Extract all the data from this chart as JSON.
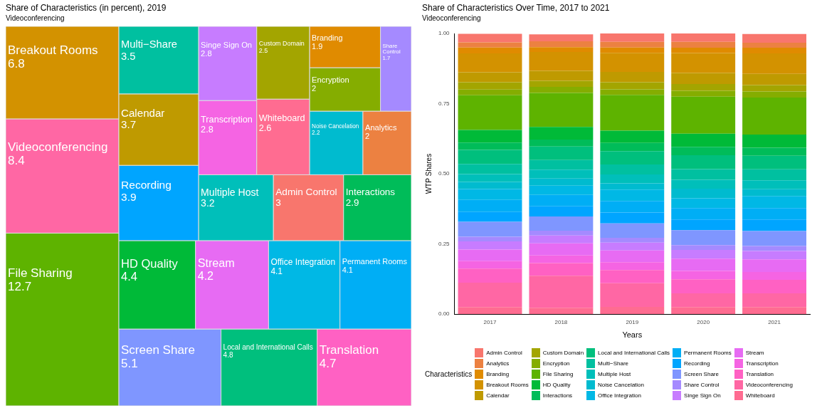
{
  "chart_data": [
    {
      "type": "other",
      "title": "Share of Characteristics (in percent), 2019",
      "subtitle": "Videoconferencing",
      "data_labels": true,
      "categories": [
        "File Sharing",
        "Videoconferencing",
        "Breakout Rooms",
        "Screen Share",
        "Local and International Calls",
        "Translation",
        "HD Quality",
        "Stream",
        "Office Integration",
        "Permanent Rooms",
        "Recording",
        "Calendar",
        "Multi−Share",
        "Multiple Host",
        "Admin Control",
        "Interactions",
        "Transcription",
        "Singe Sign On",
        "Whiteboard",
        "Custom Domain",
        "Noise Cancelation",
        "Analytics",
        "Encryption",
        "Branding",
        "Share Control"
      ],
      "values": [
        12.7,
        8.4,
        6.8,
        5.1,
        4.8,
        4.7,
        4.4,
        4.2,
        4.1,
        4.1,
        3.9,
        3.7,
        3.5,
        3.2,
        3,
        2.9,
        2.8,
        2.8,
        2.6,
        2.5,
        2.2,
        2,
        2,
        1.9,
        1.7
      ],
      "colors": [
        "#5EB300",
        "#FF67A4",
        "#D39200",
        "#7F96FF",
        "#00BF7D",
        "#FF61C3",
        "#00BA38",
        "#E76BF3",
        "#00B8E5",
        "#00AEF5",
        "#00A5FF",
        "#BF9A00",
        "#00C0A0",
        "#00BFBA",
        "#F8766D",
        "#00BC59",
        "#F564E3",
        "#C77CFF",
        "#FF6C91",
        "#A3A500",
        "#00BBCF",
        "#EC8141",
        "#85AD00",
        "#E08B00",
        "#A58AFF"
      ]
    },
    {
      "type": "bar",
      "stacked": true,
      "title": "Share of Characteristics Over Time, 2017 to 2021",
      "subtitle": "Videoconferencing",
      "xlabel": "Years",
      "ylabel": "WTP Shares",
      "legend": "bottom",
      "legend_title": "Characteristics",
      "categories": [
        "2017",
        "2018",
        "2019",
        "2020",
        "2021"
      ],
      "ylim": [
        0,
        1
      ],
      "yticks": [
        {
          "value": 0,
          "label": "0.00"
        },
        {
          "value": 0.25,
          "label": "0.25"
        },
        {
          "value": 0.5,
          "label": "0.50"
        },
        {
          "value": 0.75,
          "label": "0.75"
        },
        {
          "value": 1,
          "label": "1.00"
        }
      ],
      "series": [
        {
          "name": "Whiteboard",
          "color": "#FF6C91",
          "values": [
            0.025,
            0.023,
            0.026,
            0.025,
            0.025
          ]
        },
        {
          "name": "Videoconferencing",
          "color": "#FF67A4",
          "values": [
            0.087,
            0.114,
            0.084,
            0.049,
            0.049
          ]
        },
        {
          "name": "Translation",
          "color": "#FF61C3",
          "values": [
            0.05,
            0.045,
            0.047,
            0.05,
            0.048
          ]
        },
        {
          "name": "Transcription",
          "color": "#F564E3",
          "values": [
            0.027,
            0.027,
            0.028,
            0.03,
            0.028
          ]
        },
        {
          "name": "Stream",
          "color": "#E76BF3",
          "values": [
            0.041,
            0.043,
            0.042,
            0.044,
            0.045
          ]
        },
        {
          "name": "Singe Sign On",
          "color": "#C77CFF",
          "values": [
            0.029,
            0.028,
            0.028,
            0.031,
            0.03
          ]
        },
        {
          "name": "Share Control",
          "color": "#A58AFF",
          "values": [
            0.017,
            0.017,
            0.017,
            0.017,
            0.018
          ]
        },
        {
          "name": "Screen Share",
          "color": "#7F96FF",
          "values": [
            0.053,
            0.051,
            0.051,
            0.053,
            0.053
          ]
        },
        {
          "name": "Recording",
          "color": "#00A5FF",
          "values": [
            0.035,
            0.036,
            0.039,
            0.038,
            0.041
          ]
        },
        {
          "name": "Permanent Rooms",
          "color": "#00AEF5",
          "values": [
            0.043,
            0.041,
            0.041,
            0.041,
            0.041
          ]
        },
        {
          "name": "Office Integration",
          "color": "#00B8E5",
          "values": [
            0.039,
            0.033,
            0.041,
            0.035,
            0.043
          ]
        },
        {
          "name": "Noise Cancelation",
          "color": "#00BBCF",
          "values": [
            0.025,
            0.025,
            0.022,
            0.034,
            0.024
          ]
        },
        {
          "name": "Multiple Host",
          "color": "#00BFBA",
          "values": [
            0.028,
            0.032,
            0.032,
            0.032,
            0.032
          ]
        },
        {
          "name": "Multi−Share",
          "color": "#00C0A0",
          "values": [
            0.036,
            0.034,
            0.035,
            0.038,
            0.039
          ]
        },
        {
          "name": "Local and International Calls",
          "color": "#00BF7D",
          "values": [
            0.05,
            0.048,
            0.048,
            0.049,
            0.048
          ]
        },
        {
          "name": "Interactions",
          "color": "#00BC59",
          "values": [
            0.026,
            0.025,
            0.029,
            0.03,
            0.029
          ]
        },
        {
          "name": "HD Quality",
          "color": "#00BA38",
          "values": [
            0.045,
            0.045,
            0.044,
            0.047,
            0.047
          ]
        },
        {
          "name": "File Sharing",
          "color": "#5EB300",
          "values": [
            0.124,
            0.121,
            0.127,
            0.132,
            0.132
          ]
        },
        {
          "name": "Encryption",
          "color": "#85AD00",
          "values": [
            0.02,
            0.022,
            0.02,
            0.021,
            0.021
          ]
        },
        {
          "name": "Custom Domain",
          "color": "#A3A500",
          "values": [
            0.026,
            0.021,
            0.025,
            0.024,
            0.023
          ]
        },
        {
          "name": "Calendar",
          "color": "#BF9A00",
          "values": [
            0.036,
            0.036,
            0.037,
            0.039,
            0.04
          ]
        },
        {
          "name": "Breakout Rooms",
          "color": "#D39200",
          "values": [
            0.067,
            0.067,
            0.068,
            0.071,
            0.073
          ]
        },
        {
          "name": "Branding",
          "color": "#E08B00",
          "values": [
            0.021,
            0.017,
            0.019,
            0.019,
            0.02
          ]
        },
        {
          "name": "Analytics",
          "color": "#EC8141",
          "values": [
            0.018,
            0.021,
            0.02,
            0.021,
            0.018
          ]
        },
        {
          "name": "Admin Control",
          "color": "#F8766D",
          "values": [
            0.031,
            0.025,
            0.03,
            0.031,
            0.031
          ]
        }
      ]
    }
  ]
}
